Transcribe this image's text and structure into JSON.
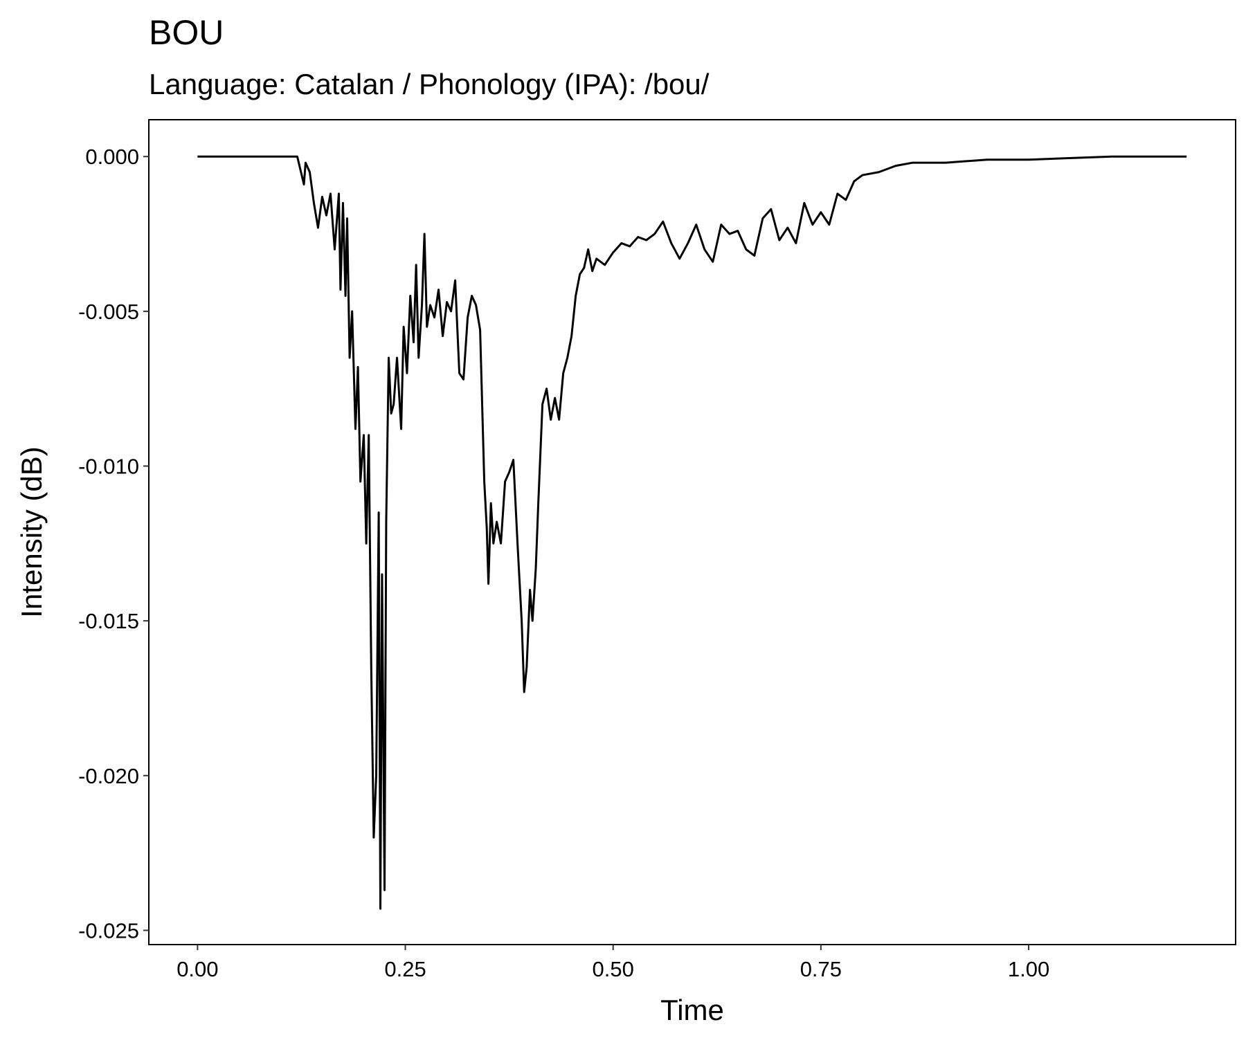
{
  "chart_data": {
    "type": "line",
    "title": "BOU",
    "subtitle": "Language: Catalan / Phonology (IPA): /bou/",
    "x_label": "Time",
    "y_label": "Intensity (dB)",
    "color": "#000000",
    "xlim": [
      -0.0586,
      1.249
    ],
    "ylim": [
      -0.02546,
      0.00119
    ],
    "xticks": [
      {
        "value": 0,
        "label": "0.00"
      },
      {
        "value": 0.25,
        "label": "0.25"
      },
      {
        "value": 0.5,
        "label": "0.50"
      },
      {
        "value": 0.75,
        "label": "0.75"
      },
      {
        "value": 1,
        "label": "1.00"
      }
    ],
    "yticks": [
      {
        "value": 0,
        "label": "0.000"
      },
      {
        "value": -0.005,
        "label": "-0.005"
      },
      {
        "value": -0.01,
        "label": "-0.010"
      },
      {
        "value": -0.015,
        "label": "-0.015"
      },
      {
        "value": -0.02,
        "label": "-0.020"
      },
      {
        "value": -0.025,
        "label": "-0.025"
      }
    ],
    "x": [
      0,
      0.12,
      0.128,
      0.13,
      0.135,
      0.14,
      0.145,
      0.15,
      0.155,
      0.16,
      0.165,
      0.17,
      0.172,
      0.175,
      0.178,
      0.18,
      0.183,
      0.186,
      0.19,
      0.193,
      0.196,
      0.2,
      0.203,
      0.206,
      0.209,
      0.212,
      0.215,
      0.218,
      0.22,
      0.222,
      0.225,
      0.227,
      0.23,
      0.233,
      0.236,
      0.24,
      0.245,
      0.248,
      0.252,
      0.256,
      0.26,
      0.263,
      0.266,
      0.27,
      0.273,
      0.276,
      0.28,
      0.285,
      0.29,
      0.295,
      0.3,
      0.305,
      0.31,
      0.315,
      0.32,
      0.325,
      0.33,
      0.335,
      0.34,
      0.345,
      0.348,
      0.35,
      0.353,
      0.356,
      0.36,
      0.365,
      0.37,
      0.375,
      0.38,
      0.385,
      0.39,
      0.393,
      0.396,
      0.4,
      0.403,
      0.407,
      0.41,
      0.415,
      0.42,
      0.425,
      0.43,
      0.435,
      0.44,
      0.445,
      0.45,
      0.455,
      0.46,
      0.465,
      0.47,
      0.475,
      0.48,
      0.49,
      0.5,
      0.51,
      0.52,
      0.53,
      0.54,
      0.55,
      0.56,
      0.57,
      0.58,
      0.59,
      0.6,
      0.61,
      0.62,
      0.63,
      0.64,
      0.65,
      0.66,
      0.67,
      0.68,
      0.69,
      0.7,
      0.71,
      0.72,
      0.73,
      0.74,
      0.75,
      0.76,
      0.77,
      0.78,
      0.79,
      0.8,
      0.82,
      0.84,
      0.86,
      0.9,
      0.95,
      1.0,
      1.1,
      1.19
    ],
    "values": [
      0,
      0,
      -0.0009,
      -0.0002,
      -0.0005,
      -0.0015,
      -0.0023,
      -0.0013,
      -0.0019,
      -0.0012,
      -0.003,
      -0.0012,
      -0.0043,
      -0.0015,
      -0.0045,
      -0.002,
      -0.0065,
      -0.005,
      -0.0088,
      -0.0068,
      -0.0105,
      -0.009,
      -0.0125,
      -0.009,
      -0.0165,
      -0.022,
      -0.02,
      -0.0115,
      -0.0243,
      -0.0135,
      -0.0237,
      -0.0118,
      -0.0065,
      -0.0083,
      -0.008,
      -0.0065,
      -0.0088,
      -0.0055,
      -0.007,
      -0.0045,
      -0.006,
      -0.0035,
      -0.0065,
      -0.0048,
      -0.0025,
      -0.0055,
      -0.0048,
      -0.0052,
      -0.0043,
      -0.0058,
      -0.0047,
      -0.005,
      -0.004,
      -0.007,
      -0.0072,
      -0.0052,
      -0.0045,
      -0.0048,
      -0.0056,
      -0.0105,
      -0.012,
      -0.0138,
      -0.0112,
      -0.0125,
      -0.0118,
      -0.0125,
      -0.0105,
      -0.0102,
      -0.0098,
      -0.0125,
      -0.015,
      -0.0173,
      -0.0165,
      -0.014,
      -0.015,
      -0.0133,
      -0.0112,
      -0.008,
      -0.0075,
      -0.0085,
      -0.0078,
      -0.0085,
      -0.007,
      -0.0065,
      -0.0058,
      -0.0045,
      -0.0038,
      -0.0036,
      -0.003,
      -0.0037,
      -0.0033,
      -0.0035,
      -0.0031,
      -0.0028,
      -0.0029,
      -0.0026,
      -0.0027,
      -0.0025,
      -0.0021,
      -0.0028,
      -0.0033,
      -0.0028,
      -0.0022,
      -0.003,
      -0.0034,
      -0.0022,
      -0.0025,
      -0.0024,
      -0.003,
      -0.0032,
      -0.002,
      -0.0017,
      -0.0027,
      -0.0023,
      -0.0028,
      -0.0015,
      -0.0022,
      -0.0018,
      -0.0022,
      -0.0012,
      -0.0014,
      -0.0008,
      -0.0006,
      -0.0005,
      -0.0003,
      -0.0002,
      -0.0002,
      -0.0001,
      -0.0001,
      0,
      0
    ]
  }
}
